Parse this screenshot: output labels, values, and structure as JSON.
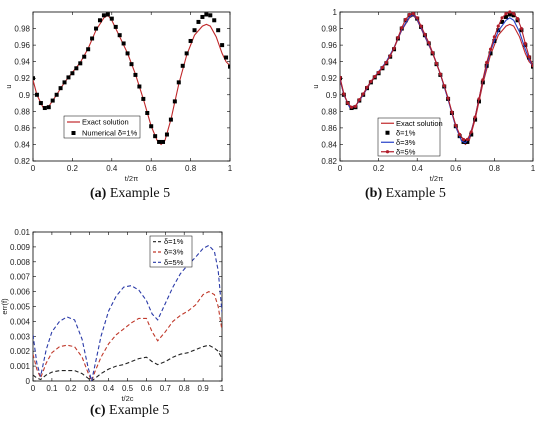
{
  "chart_data": [
    {
      "type": "line",
      "panel": "(a)",
      "caption_label": "(a)",
      "caption_text": "Example 5",
      "xlabel": "t/2π",
      "ylabel": "u",
      "xlim": [
        0,
        1
      ],
      "ylim": [
        0.82,
        1.0
      ],
      "xticks": [
        "0",
        "0.2",
        "0.4",
        "0.6",
        "0.8",
        "1"
      ],
      "yticks": [
        "0.82",
        "0.84",
        "0.86",
        "0.88",
        "0.9",
        "0.92",
        "0.94",
        "0.96",
        "0.98"
      ],
      "legend_position": "bottom-left",
      "colors": {
        "exact": "#c0282a",
        "numerical": "#000000"
      },
      "series": [
        {
          "name": "Exact solution",
          "style": "line",
          "x": [
            0,
            0.02,
            0.05,
            0.08,
            0.12,
            0.16,
            0.2,
            0.24,
            0.28,
            0.32,
            0.36,
            0.38,
            0.4,
            0.44,
            0.48,
            0.52,
            0.56,
            0.6,
            0.63,
            0.65,
            0.67,
            0.7,
            0.74,
            0.78,
            0.82,
            0.86,
            0.88,
            0.9,
            0.93,
            0.96,
            0.98,
            1.0
          ],
          "y": [
            0.918,
            0.9,
            0.885,
            0.886,
            0.9,
            0.915,
            0.927,
            0.939,
            0.956,
            0.978,
            0.993,
            0.996,
            0.99,
            0.97,
            0.95,
            0.925,
            0.895,
            0.862,
            0.845,
            0.84,
            0.845,
            0.87,
            0.913,
            0.948,
            0.972,
            0.983,
            0.985,
            0.983,
            0.97,
            0.95,
            0.94,
            0.935
          ]
        },
        {
          "name": "Numerical δ=1%",
          "style": "markers",
          "x": [
            0,
            0.02,
            0.04,
            0.06,
            0.08,
            0.1,
            0.12,
            0.14,
            0.16,
            0.18,
            0.2,
            0.22,
            0.24,
            0.26,
            0.28,
            0.3,
            0.32,
            0.34,
            0.36,
            0.38,
            0.4,
            0.42,
            0.44,
            0.46,
            0.48,
            0.5,
            0.52,
            0.54,
            0.56,
            0.58,
            0.6,
            0.62,
            0.64,
            0.66,
            0.68,
            0.7,
            0.72,
            0.74,
            0.76,
            0.78,
            0.8,
            0.82,
            0.84,
            0.86,
            0.88,
            0.9,
            0.92,
            0.94,
            0.96,
            0.98,
            1.0
          ],
          "y": [
            0.92,
            0.9,
            0.89,
            0.884,
            0.885,
            0.893,
            0.9,
            0.908,
            0.915,
            0.921,
            0.926,
            0.932,
            0.938,
            0.946,
            0.955,
            0.968,
            0.98,
            0.99,
            0.996,
            0.997,
            0.992,
            0.982,
            0.972,
            0.962,
            0.95,
            0.937,
            0.924,
            0.91,
            0.895,
            0.878,
            0.862,
            0.85,
            0.843,
            0.843,
            0.852,
            0.87,
            0.892,
            0.915,
            0.935,
            0.95,
            0.965,
            0.978,
            0.988,
            0.994,
            0.997,
            0.996,
            0.99,
            0.978,
            0.96,
            0.945,
            0.934
          ]
        }
      ]
    },
    {
      "type": "line",
      "panel": "(b)",
      "caption_label": "(b)",
      "caption_text": "Example 5",
      "xlabel": "t/2π",
      "ylabel": "u",
      "xlim": [
        0,
        1
      ],
      "ylim": [
        0.82,
        1.0
      ],
      "xticks": [
        "0",
        "0.2",
        "0.4",
        "0.6",
        "0.8",
        "1"
      ],
      "yticks": [
        "0.82",
        "0.84",
        "0.86",
        "0.88",
        "0.9",
        "0.92",
        "0.94",
        "0.96",
        "0.98",
        "1"
      ],
      "legend_position": "bottom-left",
      "colors": {
        "exact": "#c0282a",
        "d1": "#000000",
        "d3": "#2440c8",
        "d5": "#b01c2a"
      },
      "series": [
        {
          "name": "Exact solution",
          "style": "line",
          "x": [
            0,
            0.02,
            0.05,
            0.08,
            0.12,
            0.16,
            0.2,
            0.24,
            0.28,
            0.32,
            0.36,
            0.38,
            0.4,
            0.44,
            0.48,
            0.52,
            0.56,
            0.6,
            0.63,
            0.65,
            0.67,
            0.7,
            0.74,
            0.78,
            0.82,
            0.86,
            0.88,
            0.9,
            0.93,
            0.96,
            0.98,
            1.0
          ],
          "y": [
            0.918,
            0.9,
            0.885,
            0.886,
            0.9,
            0.915,
            0.927,
            0.939,
            0.956,
            0.978,
            0.993,
            0.996,
            0.99,
            0.97,
            0.95,
            0.925,
            0.895,
            0.862,
            0.845,
            0.84,
            0.845,
            0.87,
            0.913,
            0.948,
            0.972,
            0.983,
            0.985,
            0.983,
            0.97,
            0.95,
            0.94,
            0.935
          ]
        },
        {
          "name": "δ=1%",
          "style": "markers",
          "x": [
            0,
            0.02,
            0.04,
            0.06,
            0.08,
            0.1,
            0.12,
            0.14,
            0.16,
            0.18,
            0.2,
            0.22,
            0.24,
            0.26,
            0.28,
            0.3,
            0.32,
            0.34,
            0.36,
            0.38,
            0.4,
            0.42,
            0.44,
            0.46,
            0.48,
            0.5,
            0.52,
            0.54,
            0.56,
            0.58,
            0.6,
            0.62,
            0.64,
            0.66,
            0.68,
            0.7,
            0.72,
            0.74,
            0.76,
            0.78,
            0.8,
            0.82,
            0.84,
            0.86,
            0.88,
            0.9,
            0.92,
            0.94,
            0.96,
            0.98,
            1.0
          ],
          "y": [
            0.92,
            0.9,
            0.89,
            0.884,
            0.885,
            0.893,
            0.9,
            0.908,
            0.915,
            0.921,
            0.926,
            0.932,
            0.938,
            0.946,
            0.955,
            0.968,
            0.98,
            0.99,
            0.996,
            0.997,
            0.992,
            0.982,
            0.972,
            0.962,
            0.95,
            0.937,
            0.924,
            0.91,
            0.895,
            0.878,
            0.862,
            0.85,
            0.843,
            0.843,
            0.852,
            0.87,
            0.892,
            0.915,
            0.935,
            0.95,
            0.965,
            0.978,
            0.988,
            0.994,
            0.997,
            0.996,
            0.99,
            0.978,
            0.96,
            0.945,
            0.934
          ]
        },
        {
          "name": "δ=3%",
          "style": "line",
          "x": [
            0,
            0.02,
            0.05,
            0.08,
            0.12,
            0.16,
            0.2,
            0.24,
            0.28,
            0.32,
            0.36,
            0.38,
            0.4,
            0.44,
            0.48,
            0.52,
            0.56,
            0.6,
            0.63,
            0.65,
            0.67,
            0.7,
            0.74,
            0.78,
            0.82,
            0.86,
            0.88,
            0.9,
            0.93,
            0.96,
            0.98,
            1.0
          ],
          "y": [
            0.919,
            0.9,
            0.885,
            0.886,
            0.9,
            0.916,
            0.928,
            0.94,
            0.957,
            0.979,
            0.994,
            0.997,
            0.991,
            0.971,
            0.951,
            0.925,
            0.894,
            0.861,
            0.844,
            0.842,
            0.848,
            0.873,
            0.917,
            0.953,
            0.977,
            0.99,
            0.993,
            0.99,
            0.976,
            0.955,
            0.943,
            0.934
          ]
        },
        {
          "name": "δ=5%",
          "style": "line-markers",
          "x": [
            0,
            0.02,
            0.04,
            0.06,
            0.08,
            0.1,
            0.12,
            0.14,
            0.16,
            0.18,
            0.2,
            0.22,
            0.24,
            0.26,
            0.28,
            0.3,
            0.32,
            0.34,
            0.36,
            0.38,
            0.4,
            0.42,
            0.44,
            0.46,
            0.48,
            0.5,
            0.52,
            0.54,
            0.56,
            0.58,
            0.6,
            0.62,
            0.64,
            0.66,
            0.68,
            0.7,
            0.72,
            0.74,
            0.76,
            0.78,
            0.8,
            0.82,
            0.84,
            0.86,
            0.88,
            0.9,
            0.92,
            0.94,
            0.96,
            0.98,
            1.0
          ],
          "y": [
            0.921,
            0.901,
            0.89,
            0.885,
            0.886,
            0.894,
            0.901,
            0.909,
            0.916,
            0.922,
            0.927,
            0.933,
            0.939,
            0.947,
            0.956,
            0.969,
            0.981,
            0.991,
            0.997,
            0.998,
            0.993,
            0.983,
            0.973,
            0.963,
            0.951,
            0.938,
            0.925,
            0.911,
            0.896,
            0.879,
            0.863,
            0.852,
            0.846,
            0.846,
            0.855,
            0.873,
            0.895,
            0.918,
            0.939,
            0.955,
            0.97,
            0.983,
            0.993,
            0.998,
            1.0,
            0.998,
            0.992,
            0.98,
            0.962,
            0.946,
            0.935
          ]
        }
      ]
    },
    {
      "type": "line",
      "panel": "(c)",
      "caption_label": "(c)",
      "caption_text": "Example 5",
      "xlabel": "t/2c",
      "ylabel": "err(f)",
      "xlim": [
        0,
        1
      ],
      "ylim": [
        0,
        0.01
      ],
      "xticks": [
        "0",
        "0.1",
        "0.2",
        "0.3",
        "0.4",
        "0.5",
        "0.6",
        "0.7",
        "0.8",
        "0.9",
        "1"
      ],
      "yticks": [
        "0",
        "0.001",
        "0.002",
        "0.003",
        "0.004",
        "0.005",
        "0.006",
        "0.007",
        "0.008",
        "0.009",
        "0.01"
      ],
      "legend_position": "top-left",
      "colors": {
        "d1": "#222222",
        "d3": "#c0392b",
        "d5": "#2a3aa8"
      },
      "series": [
        {
          "name": "δ=1%",
          "style": "dashed",
          "x": [
            0,
            0.02,
            0.04,
            0.07,
            0.1,
            0.14,
            0.18,
            0.22,
            0.26,
            0.29,
            0.31,
            0.33,
            0.36,
            0.4,
            0.44,
            0.48,
            0.52,
            0.56,
            0.6,
            0.63,
            0.66,
            0.7,
            0.74,
            0.78,
            0.82,
            0.86,
            0.9,
            0.93,
            0.96,
            0.98,
            1.0
          ],
          "y": [
            0.0004,
            0.0002,
            0.0001,
            0.0004,
            0.0006,
            0.0007,
            0.0007,
            0.0007,
            0.0005,
            0.0002,
            0.0,
            0.0002,
            0.0005,
            0.0008,
            0.001,
            0.0011,
            0.0013,
            0.0015,
            0.0016,
            0.0013,
            0.0011,
            0.0013,
            0.0016,
            0.0018,
            0.0019,
            0.0021,
            0.0023,
            0.0024,
            0.0022,
            0.002,
            0.0015
          ]
        },
        {
          "name": "δ=3%",
          "style": "dashed",
          "x": [
            0,
            0.02,
            0.04,
            0.07,
            0.1,
            0.14,
            0.18,
            0.22,
            0.26,
            0.29,
            0.31,
            0.33,
            0.36,
            0.4,
            0.44,
            0.48,
            0.52,
            0.56,
            0.6,
            0.63,
            0.66,
            0.7,
            0.74,
            0.78,
            0.82,
            0.86,
            0.9,
            0.93,
            0.96,
            0.98,
            1.0
          ],
          "y": [
            0.0018,
            0.0008,
            0.0002,
            0.0012,
            0.0019,
            0.0023,
            0.0024,
            0.0023,
            0.0016,
            0.0006,
            0.0,
            0.0007,
            0.0016,
            0.0025,
            0.0031,
            0.0035,
            0.0039,
            0.0042,
            0.0042,
            0.0033,
            0.0027,
            0.0033,
            0.004,
            0.0044,
            0.0047,
            0.0051,
            0.0058,
            0.006,
            0.0058,
            0.005,
            0.0034
          ]
        },
        {
          "name": "δ=5%",
          "style": "dashed",
          "x": [
            0,
            0.02,
            0.04,
            0.07,
            0.1,
            0.14,
            0.18,
            0.22,
            0.26,
            0.29,
            0.31,
            0.33,
            0.36,
            0.4,
            0.44,
            0.48,
            0.52,
            0.56,
            0.6,
            0.63,
            0.66,
            0.7,
            0.74,
            0.78,
            0.82,
            0.86,
            0.9,
            0.93,
            0.96,
            0.98,
            1.0
          ],
          "y": [
            0.0031,
            0.0012,
            0.0003,
            0.0021,
            0.0033,
            0.004,
            0.0043,
            0.0041,
            0.0028,
            0.001,
            0.0,
            0.0012,
            0.003,
            0.0047,
            0.0057,
            0.0063,
            0.0064,
            0.0061,
            0.0054,
            0.0045,
            0.0041,
            0.0052,
            0.0063,
            0.0072,
            0.0078,
            0.0083,
            0.0089,
            0.0091,
            0.0087,
            0.0074,
            0.0046
          ]
        }
      ]
    }
  ]
}
